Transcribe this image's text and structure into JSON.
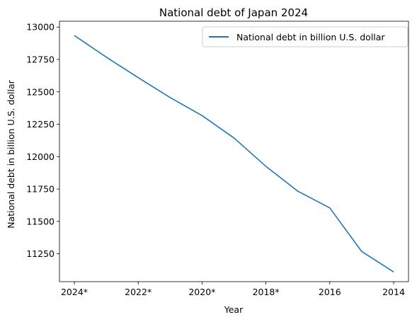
{
  "chart_data": {
    "type": "line",
    "title": "National debt of Japan 2024",
    "xlabel": "Year",
    "ylabel": "National debt in billion U.S. dollar",
    "x_tick_labels": [
      "2024*",
      "2022*",
      "2020*",
      "2018*",
      "2016",
      "2014"
    ],
    "categories": [
      "2024*",
      "2023*",
      "2022*",
      "2021*",
      "2020*",
      "2019*",
      "2018*",
      "2017",
      "2016",
      "2015",
      "2014"
    ],
    "series": [
      {
        "name": "National debt in billion U.S. dollar",
        "values": [
          12935,
          12768,
          12610,
          12456,
          12317,
          12144,
          11925,
          11733,
          11604,
          11268,
          11110
        ],
        "color": "#1f77b4"
      }
    ],
    "yticks": [
      11250,
      11500,
      11750,
      12000,
      12250,
      12500,
      12750,
      13000
    ],
    "ylim": [
      11035,
      13045
    ],
    "grid": false,
    "legend_position": "top-right"
  }
}
